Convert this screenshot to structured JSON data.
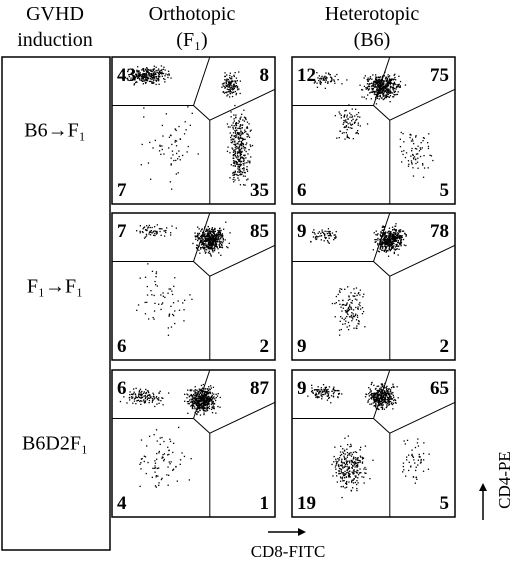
{
  "header": {
    "row_title_line1": "GVHD",
    "row_title_line2": "induction",
    "columns": [
      {
        "title": "Orthotopic",
        "subtitle": "(F₁)"
      },
      {
        "title": "Heterotopic",
        "subtitle": "(B6)"
      }
    ]
  },
  "rows": [
    {
      "label": "B6→F₁",
      "panels": [
        {
          "top_left": 43,
          "top_right": 8,
          "bottom_left": 7,
          "bottom_right": 35
        },
        {
          "top_left": 12,
          "top_right": 75,
          "bottom_left": 6,
          "bottom_right": 5
        }
      ]
    },
    {
      "label": "F₁→F₁",
      "panels": [
        {
          "top_left": 7,
          "top_right": 85,
          "bottom_left": 6,
          "bottom_right": 2
        },
        {
          "top_left": 9,
          "top_right": 78,
          "bottom_left": 9,
          "bottom_right": 2
        }
      ]
    },
    {
      "label": "B6D2F₁",
      "panels": [
        {
          "top_left": 6,
          "top_right": 87,
          "bottom_left": 4,
          "bottom_right": 1
        },
        {
          "top_left": 9,
          "top_right": 65,
          "bottom_left": 19,
          "bottom_right": 5
        }
      ]
    }
  ],
  "x_axis_label": "CD8-FITC",
  "y_axis_label": "CD4-PE"
}
